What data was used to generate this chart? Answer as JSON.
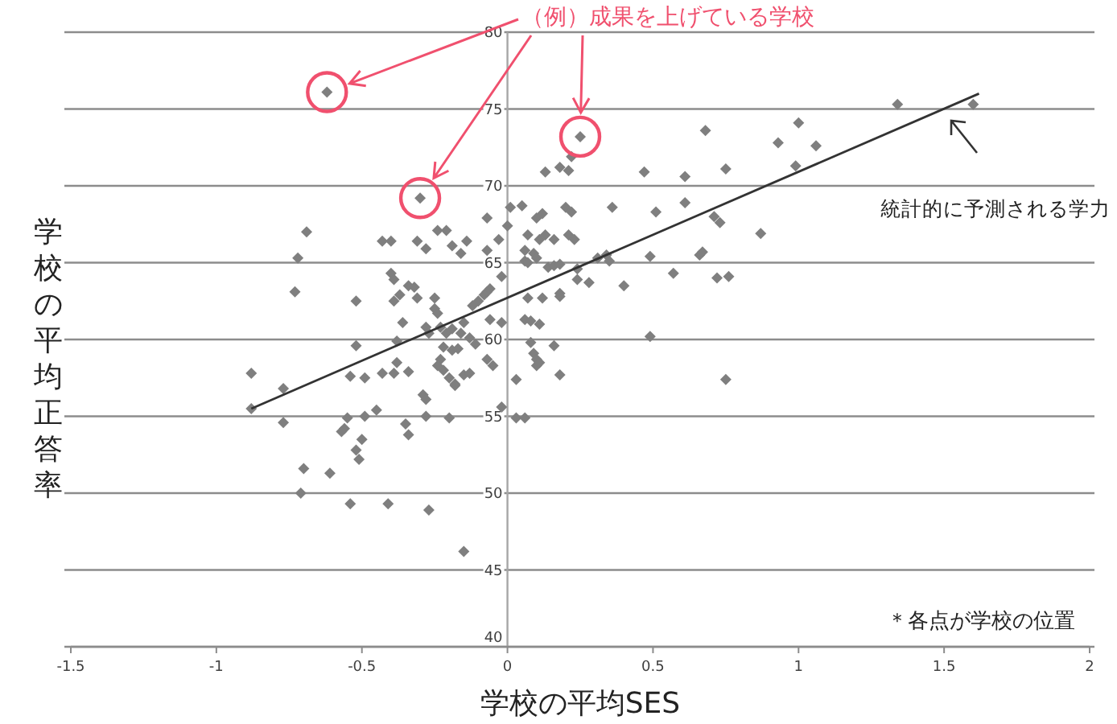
{
  "chart_data": {
    "type": "scatter",
    "xlabel": "学校の平均SES",
    "ylabel": "学校の平均正答率",
    "annotations": [
      "（例）成果を上げている学校",
      "統計的に予測される学力",
      "＊各点が学校の位置"
    ],
    "xlim": [
      -1.5,
      2
    ],
    "xticks": [
      -1.5,
      -1,
      -0.5,
      0,
      0.5,
      1,
      1.5,
      2
    ],
    "ylim": [
      40,
      80
    ],
    "yticks": [
      40,
      45,
      50,
      55,
      60,
      65,
      70,
      75,
      80
    ],
    "grid": "y",
    "marker": "diamond",
    "series": [
      {
        "color": "#7f7f7f",
        "x": [
          -0.69,
          -0.72,
          -0.73,
          -0.88,
          -0.88,
          -0.77,
          -0.77,
          -0.7,
          -0.71,
          -0.61,
          -0.54,
          -0.41,
          -0.27,
          -0.15,
          -0.52,
          -0.52,
          -0.54,
          -0.49,
          -0.49,
          -0.55,
          -0.56,
          -0.57,
          -0.5,
          -0.52,
          -0.51,
          -0.45,
          -0.43,
          -0.39,
          -0.38,
          -0.34,
          -0.35,
          -0.34,
          -0.29,
          -0.28,
          -0.28,
          -0.2,
          -0.43,
          -0.4,
          -0.4,
          -0.39,
          -0.39,
          -0.37,
          -0.34,
          -0.32,
          -0.31,
          -0.36,
          -0.38,
          -0.31,
          -0.28,
          -0.24,
          -0.21,
          -0.19,
          -0.16,
          -0.14,
          -0.25,
          -0.25,
          -0.24,
          -0.28,
          -0.27,
          -0.23,
          -0.21,
          -0.19,
          -0.22,
          -0.19,
          -0.17,
          -0.23,
          -0.24,
          -0.22,
          -0.2,
          -0.18,
          -0.18,
          -0.15,
          -0.13,
          -0.16,
          -0.13,
          -0.11,
          -0.15,
          -0.12,
          -0.1,
          -0.08,
          -0.07,
          -0.06,
          -0.06,
          -0.02,
          -0.07,
          -0.05,
          -0.02,
          -0.07,
          -0.03,
          0.0,
          -0.07,
          -0.02,
          0.13,
          0.18,
          0.21,
          0.22,
          0.47,
          0.61,
          0.75,
          0.68,
          0.93,
          1.0,
          0.99,
          0.01,
          0.05,
          0.1,
          0.12,
          0.07,
          0.11,
          0.13,
          0.16,
          0.06,
          0.09,
          0.1,
          0.06,
          0.07,
          0.14,
          0.16,
          0.18,
          0.2,
          0.22,
          0.21,
          0.23,
          0.24,
          0.24,
          0.28,
          0.31,
          0.34,
          0.35,
          0.36,
          0.4,
          0.49,
          0.51,
          0.57,
          0.61,
          0.66,
          0.67,
          0.71,
          0.73,
          0.72,
          0.76,
          0.87,
          0.49,
          0.75,
          0.06,
          0.08,
          0.11,
          0.08,
          0.16,
          0.09,
          0.1,
          0.1,
          0.11,
          0.18,
          0.07,
          0.18,
          0.18,
          0.12,
          0.03,
          0.03,
          0.06,
          1.34,
          1.6,
          1.06
        ],
        "values": [
          67.0,
          65.3,
          63.1,
          57.8,
          55.5,
          56.8,
          54.6,
          51.6,
          50.0,
          51.3,
          49.3,
          49.3,
          48.9,
          46.2,
          62.5,
          59.6,
          57.6,
          57.5,
          55.0,
          54.9,
          54.2,
          54.0,
          53.5,
          52.8,
          52.2,
          55.4,
          57.8,
          57.8,
          58.5,
          57.9,
          54.5,
          53.8,
          56.4,
          56.1,
          55.0,
          54.9,
          66.4,
          66.4,
          64.3,
          63.9,
          62.5,
          62.9,
          63.5,
          63.4,
          62.7,
          61.1,
          59.9,
          66.4,
          65.9,
          67.1,
          67.1,
          66.1,
          65.6,
          66.4,
          62.7,
          62.0,
          61.7,
          60.8,
          60.4,
          60.8,
          60.4,
          60.7,
          59.5,
          59.3,
          59.4,
          58.7,
          58.3,
          58.0,
          57.5,
          57.1,
          57.0,
          57.7,
          57.8,
          60.4,
          60.1,
          59.7,
          61.1,
          62.2,
          62.5,
          62.9,
          63.1,
          63.3,
          61.3,
          61.1,
          58.7,
          58.3,
          55.6,
          65.8,
          66.5,
          67.4,
          67.9,
          64.1,
          70.9,
          71.2,
          71.0,
          71.9,
          70.9,
          70.6,
          71.1,
          73.6,
          72.8,
          74.1,
          71.3,
          68.6,
          68.7,
          67.9,
          68.2,
          66.8,
          66.5,
          66.8,
          66.5,
          65.8,
          65.6,
          65.3,
          65.1,
          65.0,
          64.7,
          64.8,
          64.9,
          68.6,
          68.3,
          66.8,
          66.5,
          64.6,
          63.9,
          63.7,
          65.3,
          65.5,
          65.1,
          68.6,
          63.5,
          65.4,
          68.3,
          64.3,
          68.9,
          65.5,
          65.7,
          68.0,
          67.6,
          64.0,
          64.1,
          66.9,
          60.2,
          57.4,
          61.3,
          61.2,
          61.0,
          59.8,
          59.6,
          59.1,
          58.7,
          58.3,
          58.5,
          57.7,
          62.7,
          63.0,
          62.8,
          62.7,
          57.4,
          54.9,
          54.9,
          75.3,
          75.3,
          72.6
        ]
      },
      {
        "color": "#7f7f7f",
        "x": [
          -0.62,
          -0.3,
          0.25
        ],
        "values": [
          76.1,
          69.2,
          73.2
        ]
      },
      {
        "type": "line",
        "marker": "none",
        "color": "#333333",
        "x": [
          -0.88,
          1.62
        ],
        "values": [
          55.5,
          76.0
        ]
      }
    ]
  }
}
